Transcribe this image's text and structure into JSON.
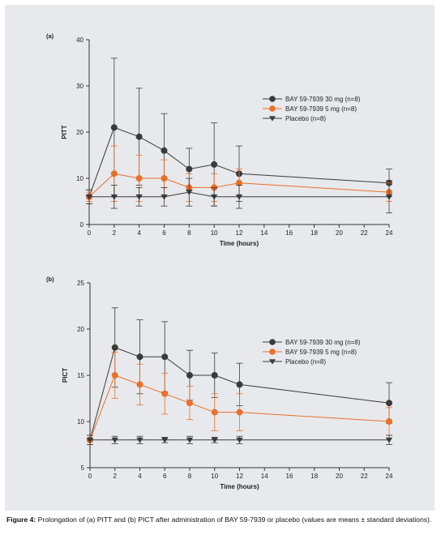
{
  "caption": {
    "label": "Figure 4:",
    "text": " Prolongation of (a) PITT and (b) PICT after administration of BAY 59-7939 or placebo (values are means ± standard deviations)."
  },
  "chart_data": [
    {
      "type": "line",
      "panel_label": "(a)",
      "xlabel": "Time (hours)",
      "ylabel": "PITT",
      "xlim": [
        0,
        24
      ],
      "ylim": [
        0,
        40
      ],
      "xticks": [
        0,
        2,
        4,
        6,
        8,
        10,
        12,
        14,
        16,
        18,
        20,
        22,
        24
      ],
      "yticks": [
        0,
        10,
        20,
        30,
        40
      ],
      "grid": false,
      "legend_position": "right",
      "series": [
        {
          "name": "BAY 59-7939 30 mg (n=8)",
          "color": "#3a3a3a",
          "marker": "circle",
          "x": [
            0,
            2,
            4,
            6,
            8,
            10,
            12,
            24
          ],
          "y": [
            6,
            21,
            19,
            16,
            12,
            13,
            11,
            9
          ],
          "err": [
            1.5,
            15,
            10.5,
            8,
            4.5,
            9,
            6,
            3
          ]
        },
        {
          "name": "BAY 59-7939 5 mg (n=8)",
          "color": "#e8702a",
          "marker": "circle",
          "x": [
            0,
            2,
            4,
            6,
            8,
            10,
            12,
            24
          ],
          "y": [
            6,
            11,
            10,
            10,
            8,
            8,
            9,
            7
          ],
          "err": [
            1,
            6,
            5,
            4,
            3,
            3,
            3,
            2
          ]
        },
        {
          "name": "Placebo (n=8)",
          "color": "#3a3a3a",
          "marker": "triangle-down",
          "x": [
            0,
            2,
            4,
            6,
            8,
            10,
            12,
            24
          ],
          "y": [
            6,
            6,
            6,
            6,
            7,
            6,
            6,
            6
          ],
          "err": [
            1.5,
            2.5,
            2,
            2,
            3,
            2,
            2.5,
            3.5
          ]
        }
      ]
    },
    {
      "type": "line",
      "panel_label": "(b)",
      "xlabel": "Time (hours)",
      "ylabel": "PICT",
      "xlim": [
        0,
        24
      ],
      "ylim": [
        5,
        25
      ],
      "xticks": [
        0,
        2,
        4,
        6,
        8,
        10,
        12,
        14,
        16,
        18,
        20,
        22,
        24
      ],
      "yticks": [
        5,
        10,
        15,
        20,
        25
      ],
      "grid": false,
      "legend_position": "right",
      "series": [
        {
          "name": "BAY 59-7939 30 mg (n=8)",
          "color": "#3a3a3a",
          "marker": "circle",
          "x": [
            0,
            2,
            4,
            6,
            8,
            10,
            12,
            24
          ],
          "y": [
            8,
            18,
            17,
            17,
            15,
            15,
            14,
            12
          ],
          "err": [
            0.5,
            4.3,
            4,
            3.8,
            2.7,
            2.4,
            2.3,
            2.2
          ]
        },
        {
          "name": "BAY 59-7939 5 mg (n=8)",
          "color": "#e8702a",
          "marker": "circle",
          "x": [
            0,
            2,
            4,
            6,
            8,
            10,
            12,
            24
          ],
          "y": [
            8,
            15,
            14,
            13,
            12,
            11,
            11,
            10
          ],
          "err": [
            0.5,
            2.5,
            2.2,
            2.2,
            1.8,
            2,
            2,
            1.5
          ]
        },
        {
          "name": "Placebo (n=8)",
          "color": "#3a3a3a",
          "marker": "triangle-down",
          "x": [
            0,
            2,
            4,
            6,
            8,
            10,
            12,
            24
          ],
          "y": [
            8,
            8,
            8,
            8,
            8,
            8,
            8,
            8
          ],
          "err": [
            0.5,
            0.4,
            0.4,
            0.3,
            0.4,
            0.3,
            0.4,
            0.5
          ]
        }
      ]
    }
  ]
}
